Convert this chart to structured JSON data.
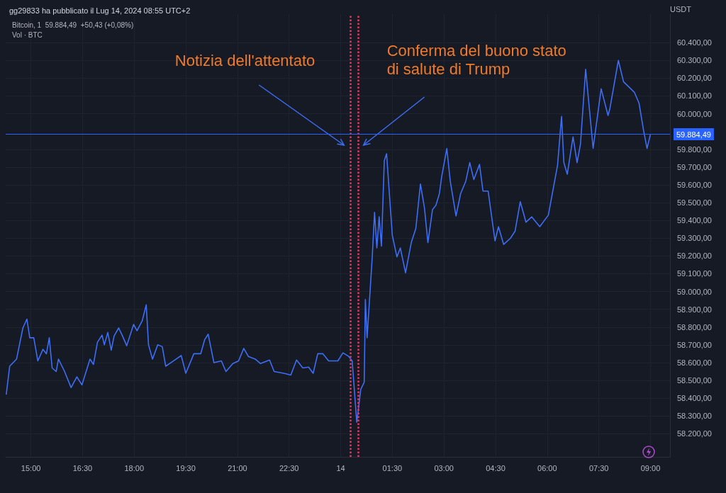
{
  "chart_data": {
    "type": "line",
    "title": "gg29833 ha pubblicato il Lug 14, 2024 08:55 UTC+2",
    "subtitle": "Bitcoin, 1  59.884,49  +50,43 (+0,08%)",
    "ylabel": "USDT",
    "annotations": [
      "Vol · BTC"
    ],
    "xlim": [
      "2024-07-13T14:16",
      "2024-07-14T09:34"
    ],
    "xticks": [
      {
        "value": "2024-07-13T15:00",
        "label": "15:00"
      },
      {
        "value": "2024-07-13T16:30",
        "label": "16:30"
      },
      {
        "value": "2024-07-13T18:00",
        "label": "18:00"
      },
      {
        "value": "2024-07-13T19:30",
        "label": "19:30"
      },
      {
        "value": "2024-07-13T21:00",
        "label": "21:00"
      },
      {
        "value": "2024-07-13T22:30",
        "label": "22:30"
      },
      {
        "value": "2024-07-14T00:00",
        "label": "14"
      },
      {
        "value": "2024-07-14T01:30",
        "label": "01:30"
      },
      {
        "value": "2024-07-14T03:00",
        "label": "03:00"
      },
      {
        "value": "2024-07-14T04:30",
        "label": "04:30"
      },
      {
        "value": "2024-07-14T06:00",
        "label": "06:00"
      },
      {
        "value": "2024-07-14T07:30",
        "label": "07:30"
      },
      {
        "value": "2024-07-14T09:00",
        "label": "09:00"
      }
    ],
    "ylim": [
      58070,
      60560
    ],
    "yticks": [
      {
        "value": 58200,
        "label": "58.200,00"
      },
      {
        "value": 58300,
        "label": "58.300,00"
      },
      {
        "value": 58400,
        "label": "58.400,00"
      },
      {
        "value": 58500,
        "label": "58.500,00"
      },
      {
        "value": 58600,
        "label": "58.600,00"
      },
      {
        "value": 58700,
        "label": "58.700,00"
      },
      {
        "value": 58800,
        "label": "58.800,00"
      },
      {
        "value": 58900,
        "label": "58.900,00"
      },
      {
        "value": 59000,
        "label": "59.000,00"
      },
      {
        "value": 59100,
        "label": "59.100,00"
      },
      {
        "value": 59200,
        "label": "59.200,00"
      },
      {
        "value": 59300,
        "label": "59.300,00"
      },
      {
        "value": 59400,
        "label": "59.400,00"
      },
      {
        "value": 59500,
        "label": "59.500,00"
      },
      {
        "value": 59600,
        "label": "59.600,00"
      },
      {
        "value": 59700,
        "label": "59.700,00"
      },
      {
        "value": 59800,
        "label": "59.800,00"
      },
      {
        "value": 60000,
        "label": "60.000,00"
      },
      {
        "value": 60100,
        "label": "60.100,00"
      },
      {
        "value": 60200,
        "label": "60.200,00"
      },
      {
        "value": 60300,
        "label": "60.300,00"
      },
      {
        "value": 60400,
        "label": "60.400,00"
      }
    ],
    "grid": true,
    "marker": "none",
    "line_style": "solid",
    "ref_lines": [
      {
        "axis": "x",
        "value": "2024-07-14T00:17",
        "label": "Notizia dell'attentato",
        "color": "#e8365d",
        "line_style": "dotted"
      },
      {
        "axis": "x",
        "value": "2024-07-14T00:31",
        "label": "Conferma del buono stato di salute di Trump",
        "color": "#e8365d",
        "line_style": "dotted"
      },
      {
        "axis": "y",
        "value": 59884.49,
        "label": "59.884,49",
        "color": "#2962ff",
        "line_style": "solid"
      }
    ],
    "series": [
      {
        "color": "#3d6ef5",
        "x": [
          "2024-07-13T14:17",
          "2024-07-13T14:23",
          "2024-07-13T14:35",
          "2024-07-13T14:46",
          "2024-07-13T14:53",
          "2024-07-13T14:58",
          "2024-07-13T15:05",
          "2024-07-13T15:12",
          "2024-07-13T15:21",
          "2024-07-13T15:27",
          "2024-07-13T15:32",
          "2024-07-13T15:37",
          "2024-07-13T15:44",
          "2024-07-13T15:48",
          "2024-07-13T15:58",
          "2024-07-13T16:10",
          "2024-07-13T16:20",
          "2024-07-13T16:29",
          "2024-07-13T16:43",
          "2024-07-13T16:49",
          "2024-07-13T16:56",
          "2024-07-13T17:04",
          "2024-07-13T17:08",
          "2024-07-13T17:14",
          "2024-07-13T17:20",
          "2024-07-13T17:25",
          "2024-07-13T17:33",
          "2024-07-13T17:39",
          "2024-07-13T17:47",
          "2024-07-13T17:59",
          "2024-07-13T18:05",
          "2024-07-13T18:14",
          "2024-07-13T18:21",
          "2024-07-13T18:25",
          "2024-07-13T18:32",
          "2024-07-13T18:41",
          "2024-07-13T18:49",
          "2024-07-13T18:55",
          "2024-07-13T19:11",
          "2024-07-13T19:22",
          "2024-07-13T19:30",
          "2024-07-13T19:44",
          "2024-07-13T19:56",
          "2024-07-13T20:03",
          "2024-07-13T20:09",
          "2024-07-13T20:19",
          "2024-07-13T20:32",
          "2024-07-13T20:40",
          "2024-07-13T20:52",
          "2024-07-13T21:02",
          "2024-07-13T21:11",
          "2024-07-13T21:19",
          "2024-07-13T21:31",
          "2024-07-13T21:40",
          "2024-07-13T21:56",
          "2024-07-13T22:04",
          "2024-07-13T22:21",
          "2024-07-13T22:33",
          "2024-07-13T22:43",
          "2024-07-13T22:54",
          "2024-07-13T23:04",
          "2024-07-13T23:12",
          "2024-07-13T23:20",
          "2024-07-13T23:29",
          "2024-07-13T23:39",
          "2024-07-13T23:55",
          "2024-07-14T00:04",
          "2024-07-14T00:14",
          "2024-07-14T00:20",
          "2024-07-14T00:28",
          "2024-07-14T00:35",
          "2024-07-14T00:41",
          "2024-07-14T00:43",
          "2024-07-14T00:46",
          "2024-07-14T00:50",
          "2024-07-14T00:55",
          "2024-07-14T00:59",
          "2024-07-14T01:03",
          "2024-07-14T01:07",
          "2024-07-14T01:11",
          "2024-07-14T01:16",
          "2024-07-14T01:20",
          "2024-07-14T01:24",
          "2024-07-14T01:30",
          "2024-07-14T01:38",
          "2024-07-14T01:44",
          "2024-07-14T01:53",
          "2024-07-14T02:03",
          "2024-07-14T02:11",
          "2024-07-14T02:19",
          "2024-07-14T02:26",
          "2024-07-14T02:32",
          "2024-07-14T02:40",
          "2024-07-14T02:46",
          "2024-07-14T02:52",
          "2024-07-14T02:56",
          "2024-07-14T03:05",
          "2024-07-14T03:11",
          "2024-07-14T03:21",
          "2024-07-14T03:29",
          "2024-07-14T03:38",
          "2024-07-14T03:45",
          "2024-07-14T03:52",
          "2024-07-14T04:02",
          "2024-07-14T04:08",
          "2024-07-14T04:17",
          "2024-07-14T04:29",
          "2024-07-14T04:35",
          "2024-07-14T04:44",
          "2024-07-14T04:56",
          "2024-07-14T05:04",
          "2024-07-14T05:13",
          "2024-07-14T05:23",
          "2024-07-14T05:33",
          "2024-07-14T05:47",
          "2024-07-14T06:02",
          "2024-07-14T06:12",
          "2024-07-14T06:18",
          "2024-07-14T06:25",
          "2024-07-14T06:29",
          "2024-07-14T06:35",
          "2024-07-14T06:45",
          "2024-07-14T06:52",
          "2024-07-14T06:58",
          "2024-07-14T07:07",
          "2024-07-14T07:20",
          "2024-07-14T07:34",
          "2024-07-14T07:46",
          "2024-07-14T07:49",
          "2024-07-14T08:04",
          "2024-07-14T08:13",
          "2024-07-14T08:32",
          "2024-07-14T08:40",
          "2024-07-14T08:48",
          "2024-07-14T08:54",
          "2024-07-14T09:00"
        ],
        "values": [
          58420,
          58580,
          58620,
          58795,
          58845,
          58740,
          58740,
          58610,
          58675,
          58650,
          58740,
          58570,
          58550,
          58620,
          58555,
          58460,
          58520,
          58475,
          58620,
          58590,
          58715,
          58755,
          58700,
          58770,
          58670,
          58750,
          58795,
          58755,
          58695,
          58815,
          58780,
          58835,
          58925,
          58700,
          58620,
          58700,
          58690,
          58580,
          58615,
          58640,
          58540,
          58650,
          58650,
          58730,
          58760,
          58600,
          58610,
          58550,
          58595,
          58610,
          58680,
          58635,
          58620,
          58595,
          58615,
          58550,
          58540,
          58530,
          58615,
          58570,
          58575,
          58540,
          58650,
          58650,
          58610,
          58610,
          58655,
          58635,
          58610,
          58265,
          58450,
          58490,
          58955,
          58740,
          58940,
          59195,
          59445,
          59245,
          59420,
          59255,
          59735,
          59775,
          59590,
          59315,
          59195,
          59245,
          59105,
          59275,
          59355,
          59605,
          59470,
          59275,
          59460,
          59485,
          59550,
          59645,
          59805,
          59620,
          59425,
          59550,
          59620,
          59725,
          59630,
          59715,
          59565,
          59565,
          59285,
          59365,
          59265,
          59300,
          59340,
          59505,
          59390,
          59420,
          59365,
          59430,
          59605,
          59710,
          59985,
          59725,
          59660,
          59870,
          59725,
          59830,
          60250,
          59805,
          60140,
          59990,
          60025,
          60300,
          60180,
          60120,
          60060,
          59905,
          59805,
          59885
        ]
      }
    ]
  }
}
